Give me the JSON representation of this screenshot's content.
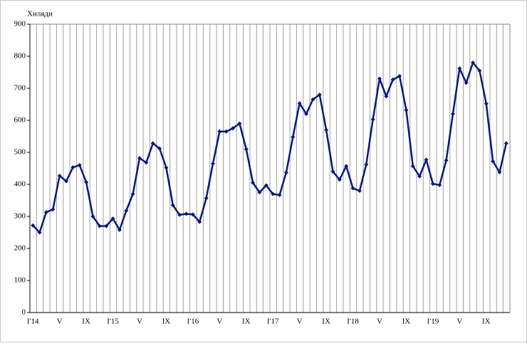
{
  "chart_data": {
    "type": "line",
    "y_label": "Хиляди",
    "categories": [
      "I'14",
      null,
      null,
      null,
      "V",
      null,
      null,
      null,
      "IX",
      null,
      null,
      null,
      "I'15",
      null,
      null,
      null,
      "V",
      null,
      null,
      null,
      "IX",
      null,
      null,
      null,
      "I'16",
      null,
      null,
      null,
      "V",
      null,
      null,
      null,
      "IX",
      null,
      null,
      null,
      "I'17",
      null,
      null,
      null,
      "V",
      null,
      null,
      null,
      "IX",
      null,
      null,
      null,
      "I'18",
      null,
      null,
      null,
      "V",
      null,
      null,
      null,
      "IX",
      null,
      null,
      null,
      "I'19",
      null,
      null,
      null,
      "V",
      null,
      null,
      null,
      "IX",
      null,
      null,
      null
    ],
    "series": [
      {
        "color": "#0a1a7a",
        "values": [
          272,
          250,
          313,
          322,
          427,
          410,
          453,
          460,
          407,
          300,
          270,
          270,
          293,
          258,
          318,
          370,
          482,
          468,
          528,
          512,
          452,
          335,
          305,
          308,
          306,
          283,
          357,
          465,
          565,
          565,
          575,
          590,
          510,
          405,
          375,
          397,
          370,
          367,
          437,
          548,
          653,
          620,
          665,
          680,
          570,
          440,
          415,
          457,
          388,
          380,
          462,
          603,
          730,
          675,
          727,
          738,
          632,
          457,
          425,
          477,
          402,
          398,
          475,
          620,
          762,
          717,
          780,
          755,
          652,
          472,
          438,
          528
        ]
      }
    ],
    "ylim": [
      0,
      900
    ],
    "yticks": [
      0,
      100,
      200,
      300,
      400,
      500,
      600,
      700,
      800,
      900
    ],
    "grid": true
  }
}
